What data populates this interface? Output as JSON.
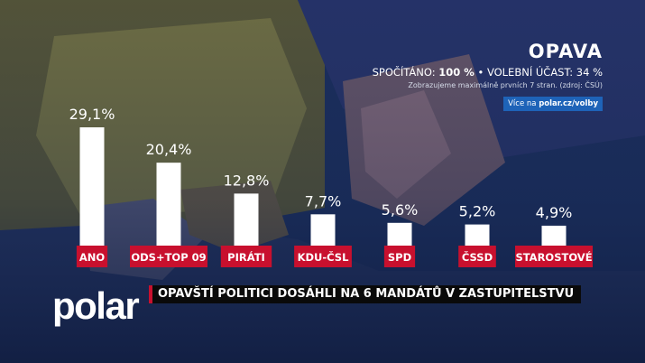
{
  "header": {
    "region": "OPAVA",
    "counted_label": "SPOČÍTÁNO:",
    "counted_value": "100 %",
    "separator": "•",
    "turnout_label": "VOLEBNÍ ÚČAST:",
    "turnout_value": "34 %",
    "note": "Zobrazujeme maximálně prvních 7 stran. (zdroj: ČSÚ)",
    "link_prefix": "Více na",
    "link_url": "polar.cz/volby"
  },
  "chart_data": {
    "type": "bar",
    "categories": [
      "ANO",
      "ODS+TOP 09",
      "PIRÁTI",
      "KDU-ČSL",
      "SPD",
      "ČSSD",
      "STAROSTOVÉ"
    ],
    "values": [
      29.1,
      20.4,
      12.8,
      7.7,
      5.6,
      5.2,
      4.9
    ],
    "value_labels": [
      "29,1%",
      "20,4%",
      "12,8%",
      "7,7%",
      "5,6%",
      "5,2%",
      "4,9%"
    ],
    "ylim": [
      0,
      29.1
    ],
    "bar_color": "#ffffff",
    "label_color": "#c8102e"
  },
  "footer": {
    "logo": "polar",
    "headline": "OPAVŠTÍ POLITICI DOSÁHLI NA 6 MANDÁTŮ V ZASTUPITELSTVU"
  },
  "colors": {
    "accent": "#c8102e",
    "link_bg": "#1e63b8",
    "background": "#13234a"
  }
}
